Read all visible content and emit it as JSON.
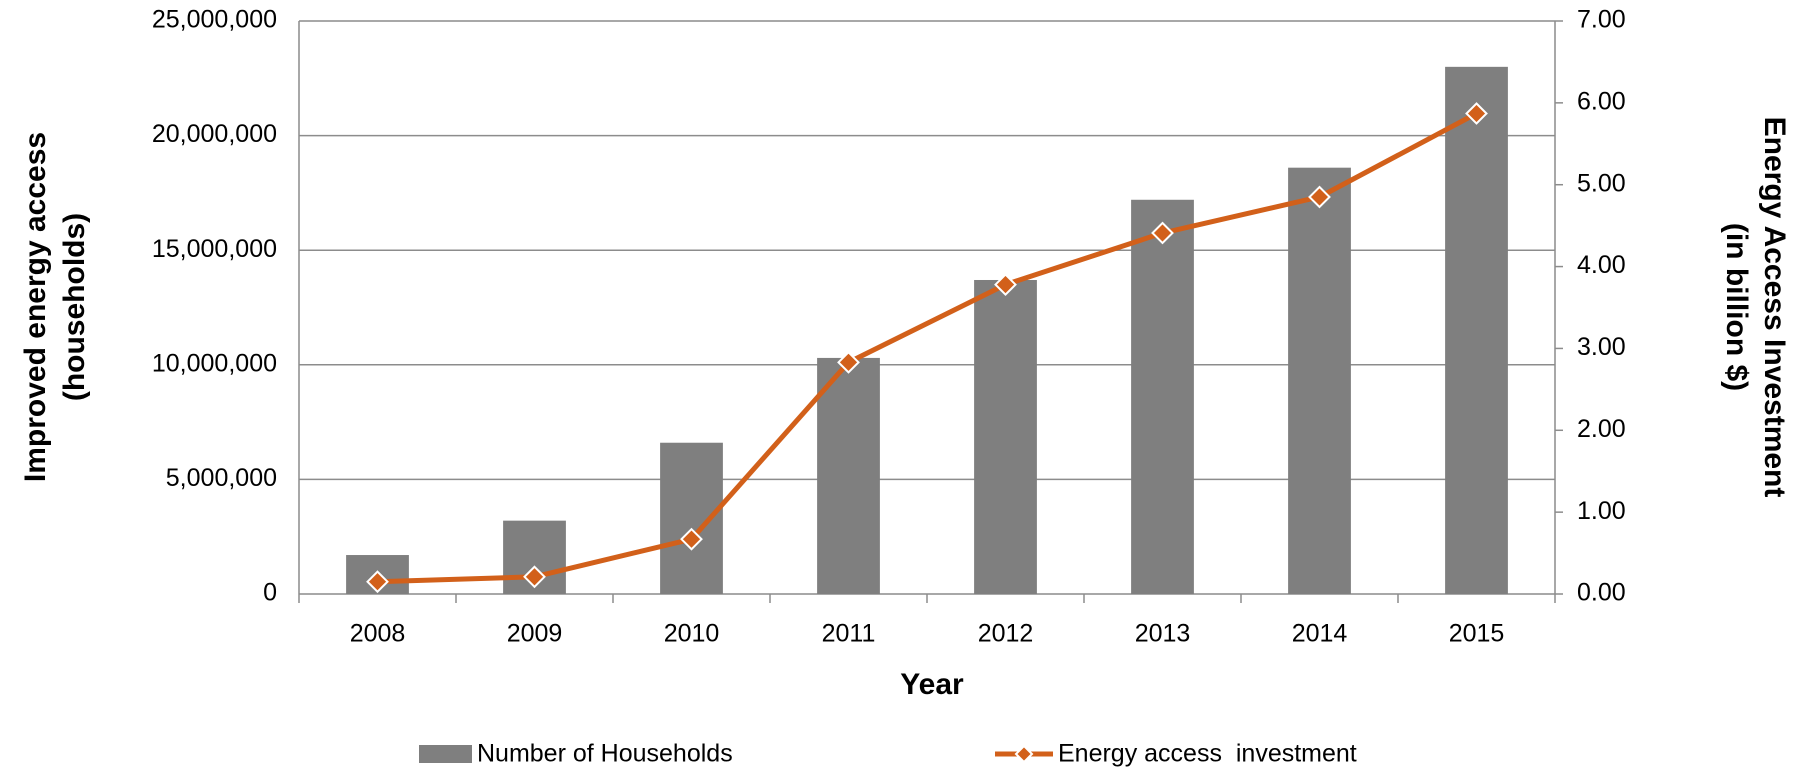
{
  "chart_data": {
    "type": "bar",
    "categories": [
      "2008",
      "2009",
      "2010",
      "2011",
      "2012",
      "2013",
      "2014",
      "2015"
    ],
    "xlabel": "Year",
    "ylabel": [
      "Improved energy access",
      "(households)"
    ],
    "y2label": [
      "Energy Access Investment",
      "(in billion $)"
    ],
    "series": [
      {
        "name": "Number of Households",
        "type": "bar",
        "color": "#7f7f7f",
        "values": [
          1700000,
          3200000,
          6600000,
          10300000,
          13700000,
          17200000,
          18600000,
          23000000
        ]
      },
      {
        "name": "Energy access  investment",
        "type": "line",
        "axis": "y2",
        "color": "#d2601a",
        "values": [
          0.15,
          0.21,
          0.67,
          2.83,
          3.78,
          4.41,
          4.85,
          5.87
        ]
      }
    ],
    "ylim": [
      0,
      25000000
    ],
    "yticks": [
      0,
      {
        "value": 5000000,
        "label": "5,000,000"
      },
      {
        "value": 10000000,
        "label": "10,000,000"
      },
      {
        "value": 15000000,
        "label": "15,000,000"
      },
      {
        "value": 20000000,
        "label": "20,000,000"
      },
      {
        "value": 25000000,
        "label": "25,000,000"
      }
    ],
    "y2lim": [
      0,
      7
    ],
    "y2ticks": [
      {
        "value": 0,
        "label": "0.00"
      },
      {
        "value": 1,
        "label": "1.00"
      },
      {
        "value": 2,
        "label": "2.00"
      },
      {
        "value": 3,
        "label": "3.00"
      },
      {
        "value": 4,
        "label": "4.00"
      },
      {
        "value": 5,
        "label": "5.00"
      },
      {
        "value": 6,
        "label": "6.00"
      },
      {
        "value": 7,
        "label": "7.00"
      }
    ],
    "grid": true,
    "legend": "bottom"
  }
}
